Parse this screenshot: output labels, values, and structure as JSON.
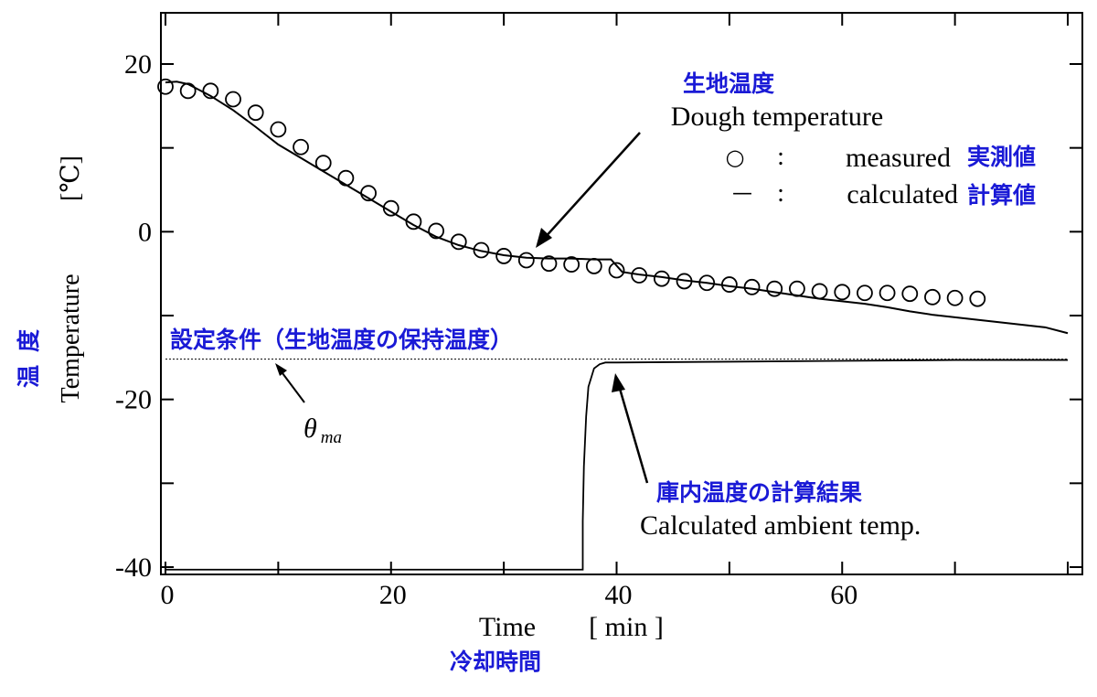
{
  "chart_data": {
    "type": "scatter",
    "xlim": [
      0,
      80
    ],
    "ylim": [
      -41,
      25
    ],
    "x_ticks": [
      0,
      20,
      40,
      60
    ],
    "y_ticks": [
      20,
      0,
      -20,
      -40
    ],
    "xlabel": "Time",
    "xlabel_unit": "[ min ]",
    "xlabel_jp": "冷却時間",
    "ylabel": "Temperature",
    "ylabel_unit": "[℃]",
    "ylabel_jp": "温度",
    "legend": {
      "measured_symbol": "○",
      "measured_sep": ":",
      "measured_label": "measured",
      "measured_jp": "実測値",
      "calculated_symbol": "—",
      "calculated_sep": ":",
      "calculated_label": "calculated",
      "calculated_jp": "計算値"
    },
    "annotations": {
      "dough_jp": "生地温度",
      "dough_en": "Dough temperature",
      "setpoint_jp": "設定条件（生地温度の保持温度）",
      "theta_main": "θ",
      "theta_sub": "ma",
      "ambient_jp": "庫内温度の計算結果",
      "ambient_en": "Calculated ambient temp."
    },
    "series": [
      {
        "name": "measured",
        "marker": "circle",
        "x": [
          0,
          2,
          4,
          6,
          8,
          10,
          12,
          14,
          16,
          18,
          20,
          22,
          24,
          26,
          28,
          30,
          32,
          34,
          36,
          38,
          40,
          42,
          44,
          46,
          48,
          50,
          52,
          54,
          56,
          58,
          60,
          62,
          64,
          66,
          68,
          70,
          72
        ],
        "y": [
          17.3,
          16.8,
          16.8,
          15.8,
          14.2,
          12.2,
          10.1,
          8.2,
          6.4,
          4.6,
          2.8,
          1.2,
          0.1,
          -1.2,
          -2.2,
          -2.9,
          -3.4,
          -3.8,
          -3.9,
          -4.1,
          -4.6,
          -5.2,
          -5.6,
          -5.9,
          -6.1,
          -6.3,
          -6.6,
          -6.8,
          -6.8,
          -7.1,
          -7.2,
          -7.3,
          -7.3,
          -7.4,
          -7.8,
          -7.9,
          -8.0
        ]
      },
      {
        "name": "calculated",
        "type": "line",
        "x": [
          0,
          1,
          2,
          3,
          4,
          6,
          8,
          10,
          12,
          14,
          16,
          18,
          20,
          22,
          24,
          26,
          28,
          30,
          32,
          34,
          36,
          38,
          39.5,
          40.5,
          42,
          44,
          46,
          48,
          50,
          52,
          54,
          56,
          58,
          60,
          62,
          64,
          66,
          68,
          70,
          72,
          74,
          76,
          78,
          80
        ],
        "y": [
          17.8,
          17.9,
          17.6,
          16.9,
          16.2,
          14.5,
          12.5,
          10.4,
          8.8,
          7.2,
          5.6,
          4.0,
          2.4,
          0.8,
          -0.6,
          -1.6,
          -2.3,
          -2.8,
          -3.1,
          -3.2,
          -3.2,
          -3.3,
          -3.3,
          -4.8,
          -5.1,
          -5.4,
          -5.8,
          -6.1,
          -6.5,
          -6.8,
          -7.2,
          -7.6,
          -8.0,
          -8.3,
          -8.6,
          -9.0,
          -9.5,
          -9.9,
          -10.2,
          -10.5,
          -10.8,
          -11.1,
          -11.4,
          -12.1
        ]
      },
      {
        "name": "setpoint",
        "type": "dashed-line",
        "x": [
          0,
          80
        ],
        "y": [
          -15.2,
          -15.2
        ]
      },
      {
        "name": "ambient",
        "type": "line",
        "x": [
          0,
          37,
          37,
          37.1,
          37.3,
          37.5,
          38,
          38.5,
          39,
          40,
          50,
          60,
          70,
          80
        ],
        "y": [
          -40.3,
          -40.3,
          -34.5,
          -28,
          -22,
          -18.5,
          -16.3,
          -15.8,
          -15.6,
          -15.6,
          -15.5,
          -15.4,
          -15.3,
          -15.3
        ]
      }
    ]
  }
}
